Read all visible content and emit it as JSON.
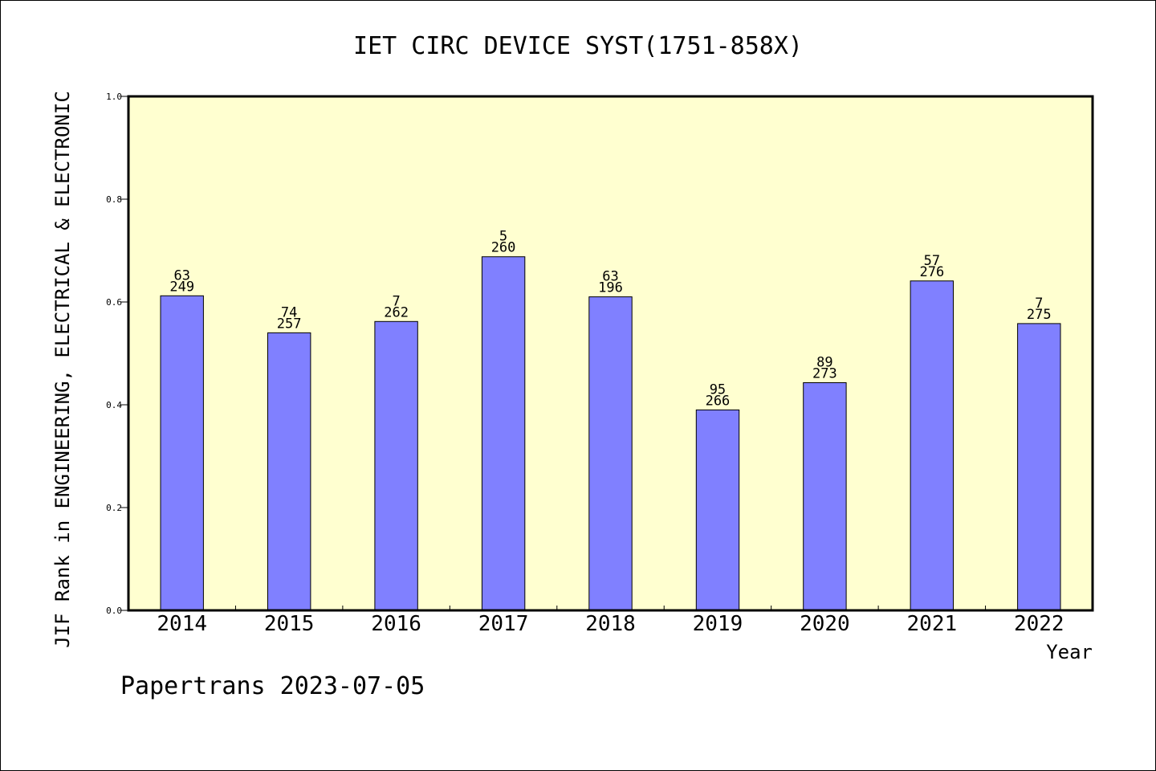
{
  "chart_data": {
    "type": "bar",
    "title": "IET CIRC DEVICE SYST(1751-858X)",
    "xlabel": "Year",
    "ylabel": "JIF Rank in ENGINEERING, ELECTRICAL & ELECTRONIC",
    "footer": "Papertrans 2023-07-05",
    "categories": [
      "2014",
      "2015",
      "2016",
      "2017",
      "2018",
      "2019",
      "2020",
      "2021",
      "2022"
    ],
    "values": [
      0.612,
      0.54,
      0.562,
      0.688,
      0.61,
      0.39,
      0.443,
      0.641,
      0.558
    ],
    "rank": [
      "63",
      "74",
      "7",
      "5",
      "63",
      "95",
      "89",
      "57",
      "7"
    ],
    "total": [
      "249",
      "257",
      "262",
      "260",
      "196",
      "266",
      "273",
      "276",
      "275"
    ],
    "ylim": [
      0,
      1.0
    ],
    "yticks": [
      "0.0",
      "0.2",
      "0.4",
      "0.6",
      "0.8",
      "1.0"
    ],
    "grid": false,
    "colors": {
      "bar": "#8080ff",
      "plot_background": "#ffffd0",
      "text": "#000000"
    }
  }
}
